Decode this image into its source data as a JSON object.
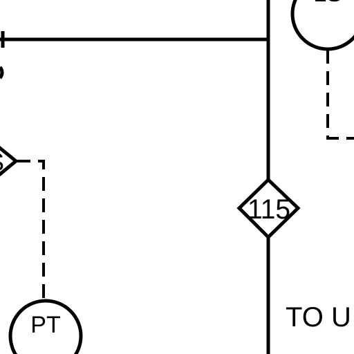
{
  "diagram": {
    "valves": [
      {
        "label": "115"
      },
      {
        "label": "S"
      }
    ],
    "instruments": [
      {
        "label": "PT"
      },
      {
        "label": "LS"
      }
    ],
    "annotation": {
      "text": "TO U"
    }
  }
}
